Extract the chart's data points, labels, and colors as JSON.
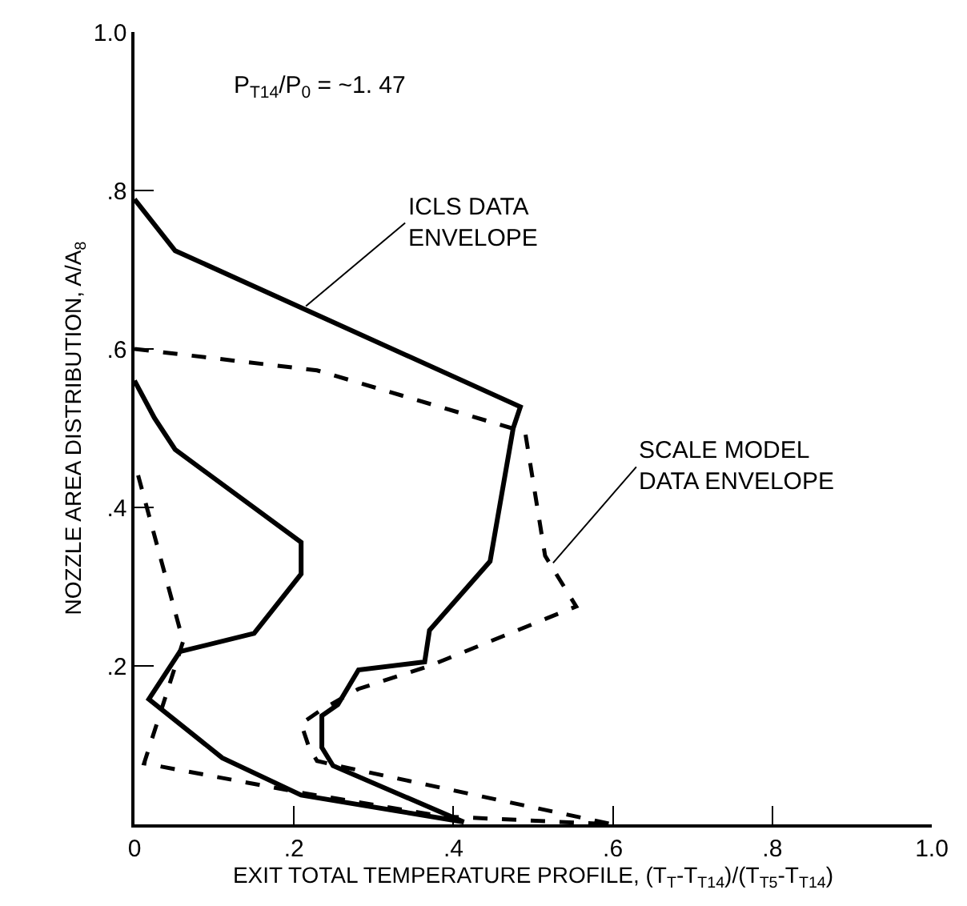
{
  "chart_data": {
    "type": "line",
    "xlabel": "EXIT TOTAL TEMPERATURE PROFILE, (T$_{T}$-T$_{T14}$)/(T$_{T5}$-T$_{T14}$)",
    "ylabel": "NOZZLE AREA DISTRIBUTION, A/A$_{8}$",
    "annotations": [
      "P$_{T14}$/P$_{0}$ = ~1. 47",
      {
        "text": "ICLS DATA\nENVELOPE",
        "x": 0.215,
        "y": 0.654
      },
      {
        "text": "SCALE MODEL\nDATA ENVELOPE",
        "x": 0.525,
        "y": 0.33
      }
    ],
    "xlim": [
      0,
      1.0
    ],
    "ylim": [
      0,
      1.0
    ],
    "xticks": [
      0,
      {
        "value": 0.2,
        "label": ".2"
      },
      {
        "value": 0.4,
        "label": ".4"
      },
      {
        "value": 0.6,
        "label": ".6"
      },
      {
        "value": 0.8,
        "label": ".8"
      },
      {
        "value": 1.0,
        "label": "1.0"
      }
    ],
    "yticks": [
      {
        "value": 0,
        "label": null
      },
      {
        "value": 0.2,
        "label": ".2"
      },
      {
        "value": 0.4,
        "label": ".4"
      },
      {
        "value": 0.6,
        "label": ".6"
      },
      {
        "value": 0.8,
        "label": ".8"
      },
      {
        "value": 1.0,
        "label": "1.0"
      }
    ],
    "series": [
      {
        "color": "#000000",
        "line_style": "solid",
        "x": [
          0,
          0.051,
          0.484,
          0.475,
          0.446,
          0.37,
          0.364,
          0.281,
          0.255,
          0.235,
          0.235,
          0.249,
          0.413,
          0.209,
          0.11,
          0.018,
          0.057,
          0.15,
          0.209,
          0.209,
          0.051,
          0.025,
          0
        ],
        "values": [
          0.789,
          0.724,
          0.527,
          0.5,
          0.332,
          0.245,
          0.205,
          0.195,
          0.151,
          0.137,
          0.097,
          0.074,
          0.003,
          0.037,
          0.084,
          0.158,
          0.218,
          0.241,
          0.316,
          0.356,
          0.473,
          0.513,
          0.56
        ]
      },
      {
        "color": "#000000",
        "line_style": "dashed",
        "x": [
          0,
          0.229,
          0.49,
          0.515,
          0.554,
          0.37,
          0.281,
          0.235,
          0.209,
          0.219,
          0.229,
          0.255,
          0.6,
          0.387,
          0.209,
          0.012,
          0.038,
          0.061,
          0.002
        ],
        "values": [
          0.6,
          0.573,
          0.495,
          0.339,
          0.275,
          0.2,
          0.171,
          0.145,
          0.127,
          0.097,
          0.08,
          0.074,
          0.0,
          0.01,
          0.04,
          0.077,
          0.158,
          0.231,
          0.45
        ]
      }
    ]
  }
}
